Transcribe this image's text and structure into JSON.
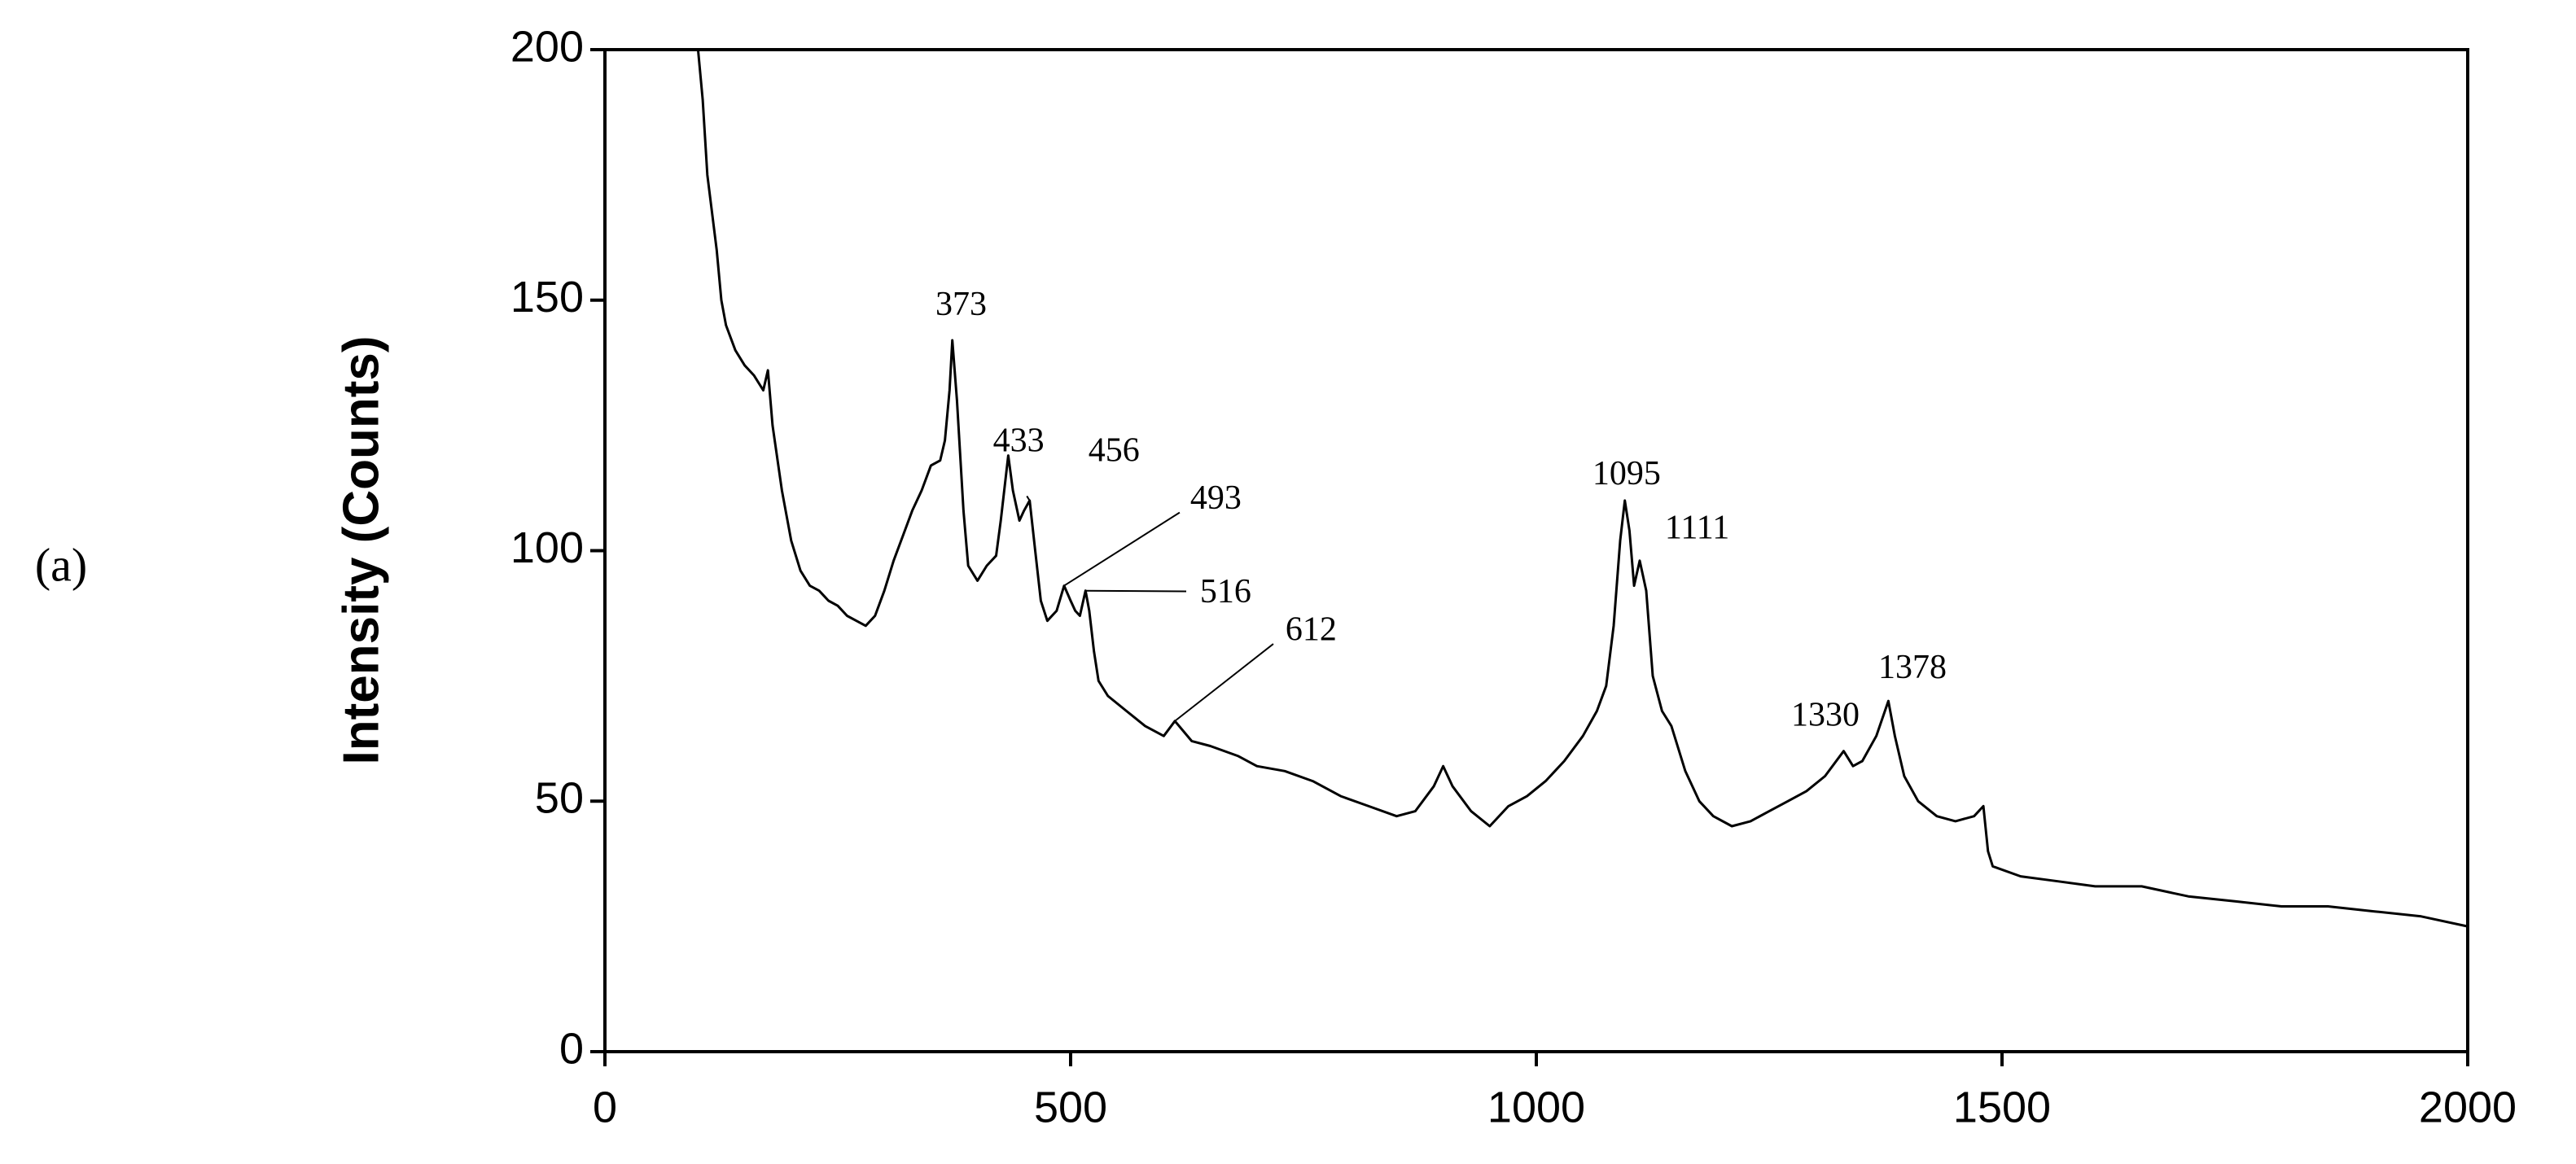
{
  "chart_data": {
    "type": "line",
    "panel_label": "(a)",
    "y_label": "Intensity (Counts)",
    "xlim": [
      0,
      2000
    ],
    "xticks": [
      0,
      500,
      1000,
      1500,
      2000
    ],
    "ylim": [
      0,
      200
    ],
    "yticks": [
      0,
      50,
      100,
      150,
      200
    ],
    "grid": false,
    "series": [
      {
        "color": "#000000",
        "x": [
          100,
          105,
          110,
          120,
          125,
          130,
          140,
          150,
          160,
          170,
          175,
          180,
          190,
          200,
          210,
          220,
          230,
          240,
          250,
          260,
          270,
          280,
          290,
          300,
          310,
          320,
          330,
          340,
          350,
          360,
          365,
          370,
          373,
          378,
          385,
          390,
          400,
          410,
          420,
          425,
          433,
          438,
          445,
          450,
          456,
          462,
          468,
          475,
          485,
          493,
          500,
          505,
          510,
          516,
          520,
          525,
          530,
          540,
          560,
          580,
          600,
          612,
          630,
          650,
          680,
          700,
          730,
          760,
          790,
          820,
          850,
          870,
          890,
          900,
          910,
          930,
          950,
          970,
          990,
          1010,
          1030,
          1050,
          1065,
          1075,
          1083,
          1090,
          1095,
          1100,
          1105,
          1111,
          1118,
          1125,
          1135,
          1145,
          1160,
          1175,
          1190,
          1210,
          1230,
          1250,
          1270,
          1290,
          1310,
          1330,
          1340,
          1350,
          1365,
          1378,
          1385,
          1395,
          1410,
          1430,
          1450,
          1470,
          1480,
          1485,
          1490,
          1520,
          1560,
          1600,
          1650,
          1700,
          1750,
          1800,
          1850,
          1900,
          1950,
          2000
        ],
        "values": [
          200,
          190,
          175,
          160,
          150,
          145,
          140,
          137,
          135,
          132,
          136,
          125,
          112,
          102,
          96,
          93,
          92,
          90,
          89,
          87,
          86,
          85,
          87,
          92,
          98,
          103,
          108,
          112,
          117,
          118,
          122,
          132,
          142,
          130,
          108,
          97,
          94,
          97,
          99,
          106,
          119,
          112,
          106,
          108,
          110,
          100,
          90,
          86,
          88,
          93,
          90,
          88,
          87,
          92,
          88,
          80,
          74,
          71,
          68,
          65,
          63,
          66,
          62,
          61,
          59,
          57,
          56,
          54,
          51,
          49,
          47,
          48,
          53,
          57,
          53,
          48,
          45,
          49,
          51,
          54,
          58,
          63,
          68,
          73,
          85,
          102,
          110,
          104,
          93,
          98,
          92,
          75,
          68,
          65,
          56,
          50,
          47,
          45,
          46,
          48,
          50,
          52,
          55,
          60,
          57,
          58,
          63,
          70,
          63,
          55,
          50,
          47,
          46,
          47,
          49,
          40,
          37,
          35,
          34,
          33,
          33,
          31,
          30,
          29,
          29,
          28,
          27,
          25
        ]
      }
    ],
    "annotations": [
      {
        "x": 373,
        "y": 142
      },
      {
        "x": 433,
        "y": 119
      },
      {
        "x": 456,
        "y": 110
      },
      {
        "x": 493,
        "y": 93
      },
      {
        "x": 516,
        "y": 92
      },
      {
        "x": 612,
        "y": 66
      },
      {
        "x": 1095,
        "y": 110
      },
      {
        "x": 1111,
        "y": 98
      },
      {
        "x": 1330,
        "y": 60
      },
      {
        "x": 1378,
        "y": 70
      }
    ]
  }
}
